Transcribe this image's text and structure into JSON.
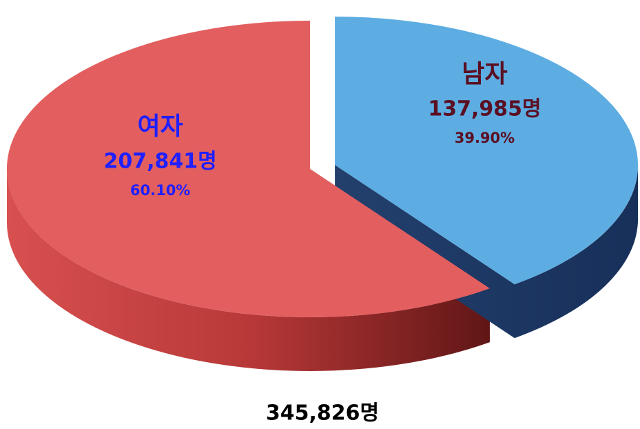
{
  "chart_data": {
    "type": "pie",
    "categories": [
      "남자",
      "여자"
    ],
    "values": [
      137985,
      207841
    ],
    "value_labels": [
      "137,985명",
      "207,841명"
    ],
    "percent_labels": [
      "39.90%",
      "60.10%"
    ],
    "colors": [
      "#5dade2",
      "#e35f5f"
    ],
    "label_colors": [
      "#5b0f22",
      "#1f1fff"
    ],
    "total_label": "345,826명"
  }
}
